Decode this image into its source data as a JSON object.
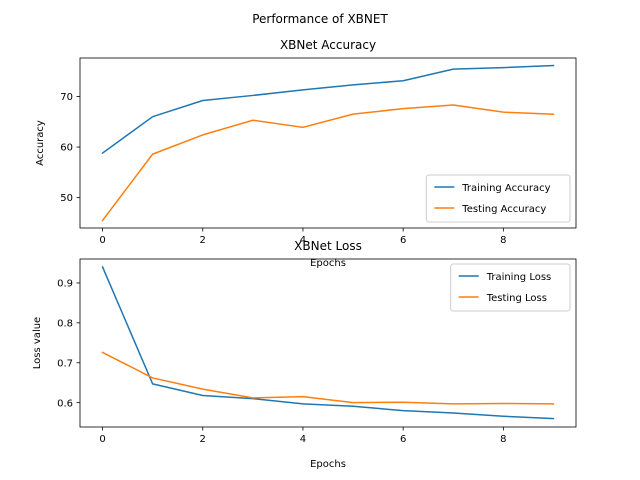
{
  "figure": {
    "suptitle": "Performance of XBNET"
  },
  "chart_data": [
    {
      "type": "line",
      "title": "XBNet Accuracy",
      "xlabel": "Epochs",
      "ylabel": "Accuracy",
      "x": [
        0,
        1,
        2,
        3,
        4,
        5,
        6,
        7,
        8,
        9
      ],
      "xlim": [
        -0.45,
        9.45
      ],
      "ylim": [
        44.0,
        77.6
      ],
      "xticks": [
        0,
        2,
        4,
        6,
        8
      ],
      "yticks": [
        50,
        60,
        70
      ],
      "legend_position": "lower-right",
      "series": [
        {
          "name": "Training Accuracy",
          "color": "#1f77b4",
          "values": [
            58.8,
            66.0,
            69.2,
            70.2,
            71.3,
            72.3,
            73.1,
            75.4,
            75.7,
            76.1
          ]
        },
        {
          "name": "Testing Accuracy",
          "color": "#ff7f0e",
          "values": [
            45.5,
            58.6,
            62.4,
            65.3,
            63.9,
            66.5,
            67.6,
            68.3,
            66.9,
            66.5
          ]
        }
      ]
    },
    {
      "type": "line",
      "title": "XBNet Loss",
      "xlabel": "Epochs",
      "ylabel": "Loss value",
      "x": [
        0,
        1,
        2,
        3,
        4,
        5,
        6,
        7,
        8,
        9
      ],
      "xlim": [
        -0.45,
        9.45
      ],
      "ylim": [
        0.539,
        0.96
      ],
      "xticks": [
        0,
        2,
        4,
        6,
        8
      ],
      "yticks": [
        0.6,
        0.7,
        0.8,
        0.9
      ],
      "legend_position": "upper-right",
      "series": [
        {
          "name": "Training Loss",
          "color": "#1f77b4",
          "values": [
            0.94,
            0.647,
            0.618,
            0.61,
            0.597,
            0.591,
            0.58,
            0.574,
            0.566,
            0.56
          ]
        },
        {
          "name": "Testing Loss",
          "color": "#ff7f0e",
          "values": [
            0.726,
            0.662,
            0.634,
            0.612,
            0.615,
            0.6,
            0.601,
            0.597,
            0.598,
            0.597
          ]
        }
      ]
    }
  ]
}
